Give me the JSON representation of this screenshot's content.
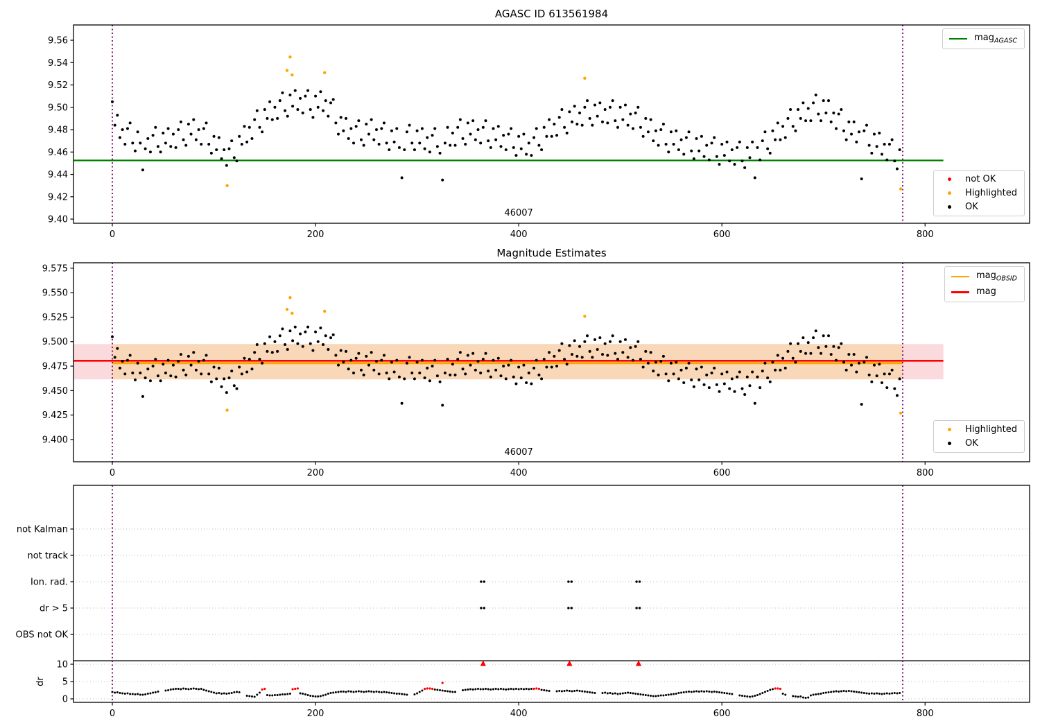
{
  "colors": {
    "green": "#008000",
    "red": "#ff0000",
    "orange": "#ffa500",
    "black": "#000000",
    "purple": "#800080",
    "band_pink": "#fbdade",
    "band_peach": "#f8d8b8",
    "grid": "#b9b9b9"
  },
  "legends": {
    "p1_line": {
      "base": "mag",
      "sub": "AGASC"
    },
    "p1_markers": [
      {
        "label": "not OK",
        "color": "#ff0000"
      },
      {
        "label": "Highlighted",
        "color": "#ffa500"
      },
      {
        "label": "OK",
        "color": "#000000"
      }
    ],
    "p2_lines": [
      {
        "base": "mag",
        "sub": "OBSID",
        "color": "#ffa500"
      },
      {
        "base": "mag",
        "sub": "",
        "color": "#ff0000"
      }
    ],
    "p2_markers": [
      {
        "label": "Highlighted",
        "color": "#ffa500"
      },
      {
        "label": "OK",
        "color": "#000000"
      }
    ]
  },
  "chart_data": [
    {
      "type": "scatter",
      "title": "AGASC ID 613561984",
      "annotation": "46007",
      "xlim": [
        -38,
        903
      ],
      "ylim": [
        9.3963,
        9.5737
      ],
      "xticks": [
        0,
        200,
        400,
        600,
        800
      ],
      "xtick_labels": [
        "0",
        "200",
        "400",
        "600",
        "800"
      ],
      "yticks": [
        9.4,
        9.42,
        9.44,
        9.46,
        9.48,
        9.5,
        9.52,
        9.54,
        9.56
      ],
      "ytick_labels": [
        "9.40",
        "9.42",
        "9.44",
        "9.46",
        "9.48",
        "9.50",
        "9.52",
        "9.54",
        "9.56"
      ],
      "agasc_line": 9.4525,
      "line_span": [
        -38,
        818
      ],
      "vlines": [
        0,
        778
      ],
      "legend_entries": [
        "mag_AGASC",
        "not OK",
        "Highlighted",
        "OK"
      ],
      "series": {
        "ok": {
          "x0": 0,
          "dx": 2.5,
          "base": 9.4,
          "mmag": [
            105,
            84,
            93,
            73,
            80,
            67,
            81,
            86,
            68,
            61,
            78,
            68,
            44,
            63,
            72,
            60,
            75,
            82,
            65,
            60,
            77,
            68,
            81,
            65,
            76,
            64,
            80,
            87,
            71,
            66,
            85,
            76,
            89,
            71,
            80,
            67,
            81,
            86,
            67,
            59,
            74,
            62,
            73,
            54,
            62,
            48,
            63,
            70,
            55,
            52,
            74,
            67,
            83,
            69,
            82,
            72,
            89,
            97,
            82,
            78,
            98,
            90,
            105,
            89,
            100,
            90,
            106,
            113,
            97,
            92,
            111,
            101,
            115,
            98,
            108,
            95,
            110,
            115,
            98,
            91,
            110,
            100,
            114,
            97,
            106,
            92,
            104,
            107,
            86,
            76,
            91,
            79,
            90,
            72,
            81,
            68,
            83,
            88,
            71,
            66,
            85,
            76,
            89,
            71,
            80,
            67,
            81,
            86,
            68,
            62,
            79,
            69,
            81,
            64,
            37,
            62,
            78,
            84,
            68,
            62,
            79,
            68,
            81,
            63,
            73,
            60,
            75,
            81,
            65,
            59,
            35,
            68,
            82,
            66,
            77,
            66,
            82,
            89,
            72,
            67,
            86,
            76,
            88,
            71,
            80,
            68,
            82,
            88,
            70,
            64,
            81,
            71,
            83,
            65,
            75,
            62,
            76,
            81,
            64,
            57,
            74,
            63,
            76,
            58,
            68,
            57,
            73,
            81,
            66,
            62,
            82,
            74,
            89,
            74,
            85,
            75,
            91,
            98,
            82,
            77,
            96,
            87,
            101,
            85,
            95,
            84,
            100,
            106,
            90,
            84,
            102,
            92,
            104,
            87,
            98,
            86,
            100,
            106,
            88,
            82,
            100,
            89,
            102,
            84,
            94,
            81,
            95,
            100,
            82,
            74,
            90,
            78,
            89,
            70,
            79,
            66,
            80,
            85,
            67,
            60,
            78,
            67,
            79,
            62,
            71,
            58,
            73,
            78,
            61,
            54,
            72,
            61,
            74,
            56,
            66,
            53,
            68,
            73,
            56,
            49,
            67,
            57,
            69,
            52,
            62,
            49,
            64,
            69,
            52,
            46,
            64,
            55,
            69,
            37,
            64,
            53,
            70,
            78,
            63,
            59,
            79,
            71,
            86,
            71,
            83,
            73,
            90,
            98,
            83,
            79,
            98,
            90,
            104,
            88,
            99,
            88,
            104,
            111,
            94,
            88,
            106,
            95,
            106,
            87,
            95,
            81,
            94,
            98,
            79,
            71,
            87,
            76,
            87,
            69,
            78,
            36,
            79,
            84,
            66,
            59,
            76,
            65,
            77,
            58,
            67,
            53,
            67,
            71,
            52,
            45,
            62
          ]
        },
        "highlighted": [
          [
            113,
            9.43
          ],
          [
            172,
            9.533
          ],
          [
            175,
            9.545
          ],
          [
            177,
            9.529
          ],
          [
            209,
            9.531
          ],
          [
            465,
            9.526
          ],
          [
            776,
            9.427
          ]
        ]
      }
    },
    {
      "type": "scatter",
      "title": "Magnitude Estimates",
      "annotation": "46007",
      "xlim": [
        -38,
        903
      ],
      "ylim": [
        9.3773,
        9.5805
      ],
      "xticks": [
        0,
        200,
        400,
        600,
        800
      ],
      "xtick_labels": [
        "0",
        "200",
        "400",
        "600",
        "800"
      ],
      "yticks": [
        9.4,
        9.425,
        9.45,
        9.475,
        9.5,
        9.525,
        9.55,
        9.575
      ],
      "ytick_labels": [
        "9.400",
        "9.425",
        "9.450",
        "9.475",
        "9.500",
        "9.525",
        "9.550",
        "9.575"
      ],
      "mag_line": 9.4805,
      "obsid_line": 9.478,
      "band": [
        9.4615,
        9.4975
      ],
      "band_span": [
        -38,
        818
      ],
      "obsid_band_span": [
        0,
        778
      ],
      "vlines": [
        0,
        778
      ],
      "legend_entries": [
        "mag_OBSID",
        "mag",
        "Highlighted",
        "OK"
      ],
      "series_ref": 0
    },
    {
      "type": "scatter",
      "title": "",
      "flag_labels": [
        "not Kalman",
        "not track",
        "Ion. rad.",
        "dr > 5",
        "OBS not OK"
      ],
      "dr_ticks": [
        10,
        5,
        0
      ],
      "dr_tick_labels": [
        "10",
        "5",
        "0"
      ],
      "ylabel": "dr",
      "xticks": [
        0,
        200,
        400,
        600,
        800
      ],
      "xtick_labels": [
        "0",
        "200",
        "400",
        "600",
        "800"
      ],
      "separator_dr": 11,
      "vlines": [
        0,
        778
      ],
      "flag_points": {
        "ion_rad_x": [
          363,
          366,
          449,
          452,
          516,
          519
        ],
        "dr_gt5_x": [
          363,
          366,
          449,
          452,
          516,
          519
        ]
      },
      "dr_gt10_x": [
        365,
        450,
        518
      ],
      "dr_series": {
        "x0": 0,
        "dx": 2.5,
        "v": [
          2.0,
          1.8,
          1.9,
          1.7,
          1.6,
          1.5,
          1.6,
          1.4,
          1.4,
          1.3,
          1.4,
          1.2,
          1.2,
          1.3,
          1.5,
          1.6,
          1.8,
          1.9,
          2.1,
          null,
          null,
          2.4,
          2.5,
          2.7,
          2.8,
          2.9,
          2.9,
          2.8,
          3.0,
          2.9,
          2.8,
          2.9,
          3.0,
          2.9,
          2.8,
          2.9,
          2.6,
          2.4,
          2.2,
          2.0,
          1.8,
          1.6,
          1.7,
          1.5,
          1.6,
          1.5,
          1.6,
          1.7,
          1.9,
          2.0,
          1.9,
          null,
          null,
          0.9,
          0.8,
          0.7,
          0.6,
          1.2,
          1.8,
          null,
          null,
          1.1,
          1.0,
          1.0,
          1.1,
          1.1,
          1.2,
          1.3,
          1.3,
          1.4,
          1.5,
          null,
          null,
          null,
          1.6,
          1.5,
          1.3,
          1.1,
          0.9,
          0.8,
          0.7,
          0.7,
          0.8,
          1.0,
          1.2,
          1.5,
          1.7,
          1.8,
          1.9,
          2.0,
          2.1,
          2.1,
          2.0,
          2.2,
          2.1,
          2.0,
          2.1,
          2.2,
          2.1,
          2.0,
          2.1,
          2.2,
          2.1,
          2.0,
          2.1,
          2.0,
          1.9,
          2.0,
          1.9,
          1.8,
          1.7,
          1.6,
          1.5,
          1.5,
          1.4,
          1.3,
          1.2,
          null,
          null,
          1.3,
          1.6,
          2.0,
          2.4,
          null,
          null,
          null,
          null,
          2.7,
          2.6,
          2.5,
          2.4,
          2.3,
          2.2,
          2.1,
          2.0,
          2.0,
          null,
          null,
          2.5,
          2.6,
          2.7,
          2.8,
          2.7,
          2.8,
          2.9,
          2.8,
          2.8,
          2.9,
          2.8,
          2.7,
          2.8,
          2.9,
          2.8,
          2.9,
          2.8,
          2.7,
          2.8,
          2.9,
          2.8,
          2.9,
          2.8,
          2.9,
          2.8,
          2.9,
          2.8,
          2.9,
          null,
          null,
          null,
          2.6,
          2.5,
          2.4,
          2.3,
          null,
          null,
          2.2,
          2.3,
          2.2,
          2.3,
          2.4,
          2.3,
          2.2,
          2.3,
          2.4,
          2.3,
          2.2,
          2.1,
          2.0,
          1.9,
          1.8,
          1.7,
          null,
          null,
          1.7,
          1.8,
          1.6,
          1.7,
          1.5,
          1.6,
          1.4,
          1.5,
          1.6,
          1.7,
          1.8,
          1.7,
          1.6,
          1.5,
          1.4,
          1.3,
          1.2,
          1.1,
          1.0,
          0.9,
          0.8,
          0.8,
          0.9,
          1.0,
          1.0,
          1.1,
          1.2,
          1.3,
          1.4,
          1.5,
          1.7,
          1.8,
          1.9,
          2.0,
          2.1,
          2.0,
          2.1,
          2.2,
          2.1,
          2.2,
          2.1,
          2.2,
          2.1,
          2.0,
          2.1,
          2.0,
          1.9,
          1.8,
          1.7,
          1.6,
          1.5,
          1.4,
          null,
          null,
          1.0,
          0.9,
          0.8,
          0.7,
          0.6,
          0.7,
          0.9,
          1.1,
          1.4,
          1.7,
          2.0,
          2.3,
          2.6,
          2.8,
          null,
          null,
          null,
          1.5,
          1.2,
          null,
          null,
          0.8,
          0.7,
          0.6,
          0.7,
          0.4,
          0.3,
          0.4,
          1.0,
          1.2,
          1.3,
          1.4,
          1.5,
          1.7,
          1.8,
          1.9,
          2.0,
          2.1,
          2.2,
          2.1,
          2.2,
          2.3,
          2.2,
          2.3,
          2.2,
          2.1,
          2.0,
          1.9,
          1.8,
          1.7,
          1.6,
          1.5,
          1.6,
          1.5,
          1.6,
          1.5,
          1.4,
          1.5,
          1.6,
          1.5,
          1.6,
          1.7,
          1.6,
          1.7
        ]
      },
      "dr_red": [
        [
          147.5,
          2.7
        ],
        [
          150,
          2.9
        ],
        [
          177.5,
          2.8
        ],
        [
          180,
          2.9
        ],
        [
          182.5,
          3.0
        ],
        [
          307.5,
          2.9
        ],
        [
          310,
          3.0
        ],
        [
          312.5,
          3.0
        ],
        [
          315,
          2.9
        ],
        [
          325,
          4.6
        ],
        [
          415,
          2.9
        ],
        [
          417.5,
          3.0
        ],
        [
          420,
          2.9
        ],
        [
          652.5,
          3.0
        ],
        [
          655,
          3.0
        ],
        [
          657.5,
          2.9
        ]
      ]
    }
  ]
}
